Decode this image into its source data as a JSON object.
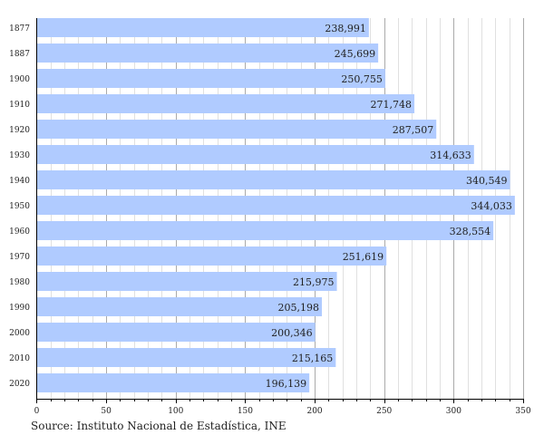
{
  "chart_data": {
    "type": "bar",
    "orientation": "horizontal",
    "categories": [
      "1877",
      "1887",
      "1900",
      "1910",
      "1920",
      "1930",
      "1940",
      "1950",
      "1960",
      "1970",
      "1980",
      "1990",
      "2000",
      "2010",
      "2020"
    ],
    "values": [
      238991,
      245699,
      250755,
      271748,
      287507,
      314633,
      340549,
      344033,
      328554,
      251619,
      215975,
      205198,
      200346,
      215165,
      196139
    ],
    "value_labels": [
      "238,991",
      "245,699",
      "250,755",
      "271,748",
      "287,507",
      "314,633",
      "340,549",
      "344,033",
      "328,554",
      "251,619",
      "215,975",
      "205,198",
      "200,346",
      "215,165",
      "196,139"
    ],
    "axis_unit_divisor": 1000,
    "xlim": [
      0,
      350
    ],
    "xticks": [
      "0",
      "50",
      "100",
      "150",
      "200",
      "250",
      "300",
      "350"
    ],
    "minor_grid_step": 10,
    "grid": true,
    "bar_color": "#b0cbff",
    "source": "Source: Instituto Nacional de Estadística, INE"
  }
}
